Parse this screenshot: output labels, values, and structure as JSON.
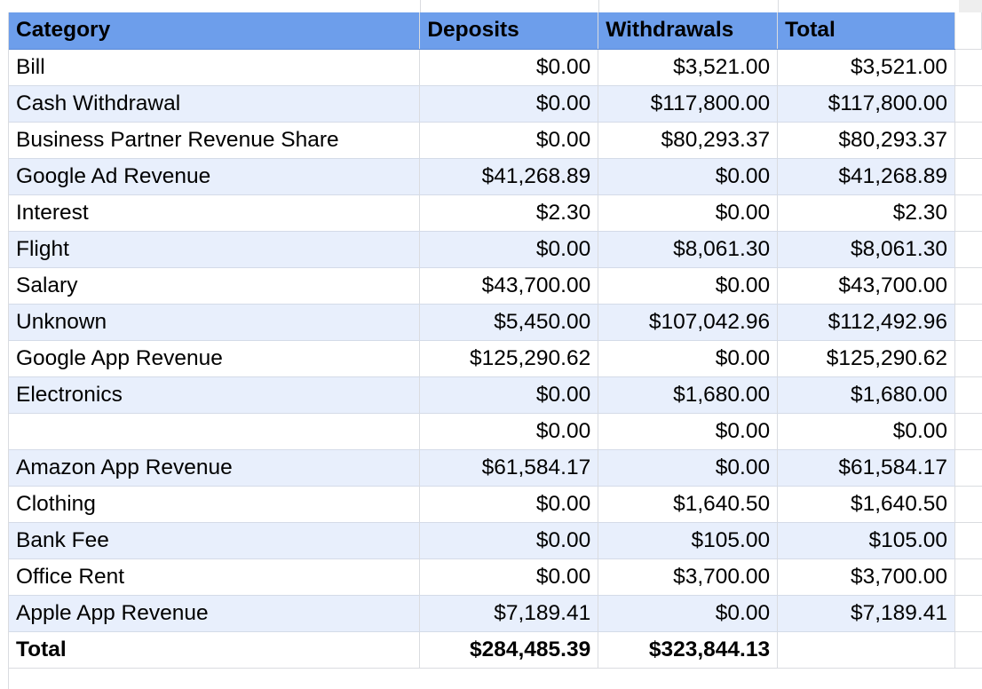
{
  "headers": {
    "category": "Category",
    "deposits": "Deposits",
    "withdrawals": "Withdrawals",
    "total": "Total"
  },
  "rows": [
    {
      "category": "Bill",
      "deposits": "$0.00",
      "withdrawals": "$3,521.00",
      "total": "$3,521.00"
    },
    {
      "category": "Cash Withdrawal",
      "deposits": "$0.00",
      "withdrawals": "$117,800.00",
      "total": "$117,800.00"
    },
    {
      "category": "Business Partner Revenue Share",
      "deposits": "$0.00",
      "withdrawals": "$80,293.37",
      "total": "$80,293.37"
    },
    {
      "category": "Google Ad Revenue",
      "deposits": "$41,268.89",
      "withdrawals": "$0.00",
      "total": "$41,268.89"
    },
    {
      "category": "Interest",
      "deposits": "$2.30",
      "withdrawals": "$0.00",
      "total": "$2.30"
    },
    {
      "category": "Flight",
      "deposits": "$0.00",
      "withdrawals": "$8,061.30",
      "total": "$8,061.30"
    },
    {
      "category": "Salary",
      "deposits": "$43,700.00",
      "withdrawals": "$0.00",
      "total": "$43,700.00"
    },
    {
      "category": "Unknown",
      "deposits": "$5,450.00",
      "withdrawals": "$107,042.96",
      "total": "$112,492.96"
    },
    {
      "category": "Google App Revenue",
      "deposits": "$125,290.62",
      "withdrawals": "$0.00",
      "total": "$125,290.62"
    },
    {
      "category": "Electronics",
      "deposits": "$0.00",
      "withdrawals": "$1,680.00",
      "total": "$1,680.00"
    },
    {
      "category": "",
      "deposits": "$0.00",
      "withdrawals": "$0.00",
      "total": "$0.00"
    },
    {
      "category": "Amazon App Revenue",
      "deposits": "$61,584.17",
      "withdrawals": "$0.00",
      "total": "$61,584.17"
    },
    {
      "category": "Clothing",
      "deposits": "$0.00",
      "withdrawals": "$1,640.50",
      "total": "$1,640.50"
    },
    {
      "category": "Bank Fee",
      "deposits": "$0.00",
      "withdrawals": "$105.00",
      "total": "$105.00"
    },
    {
      "category": "Office Rent",
      "deposits": "$0.00",
      "withdrawals": "$3,700.00",
      "total": "$3,700.00"
    },
    {
      "category": "Apple App Revenue",
      "deposits": "$7,189.41",
      "withdrawals": "$0.00",
      "total": "$7,189.41"
    }
  ],
  "totals": {
    "label": "Total",
    "deposits": "$284,485.39",
    "withdrawals": "$323,844.13",
    "total": ""
  }
}
